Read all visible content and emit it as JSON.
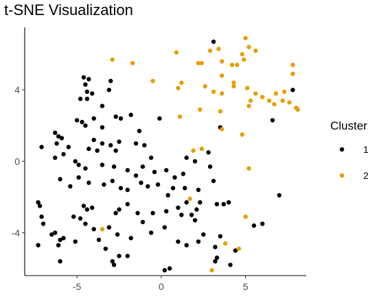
{
  "chart_data": {
    "type": "scatter",
    "title": "t-SNE Visualization",
    "xlabel": "",
    "ylabel": "",
    "xlim": [
      -8.1,
      8.6
    ],
    "ylim": [
      -6.4,
      7.5
    ],
    "x_ticks": [
      {
        "value": -5,
        "label": "-5"
      },
      {
        "value": 0,
        "label": "0"
      },
      {
        "value": 5,
        "label": "5"
      }
    ],
    "y_ticks": [
      {
        "value": -4,
        "label": "-4"
      },
      {
        "value": 0,
        "label": "0"
      },
      {
        "value": 4,
        "label": "4"
      }
    ],
    "grid": false,
    "legend": {
      "title": "Cluster",
      "position": "right",
      "entries": [
        {
          "label": "1",
          "color": "#000000"
        },
        {
          "label": "2",
          "color": "#E69F00"
        }
      ]
    },
    "series": [
      {
        "name": "1",
        "color": "#000000",
        "points": [
          [
            -4.6,
            4.7
          ],
          [
            -4.3,
            4.6
          ],
          [
            -4.5,
            4.3
          ],
          [
            -4.4,
            3.9
          ],
          [
            -4.1,
            3.8
          ],
          [
            -3.0,
            4.5
          ],
          [
            -3.1,
            4.0
          ],
          [
            -4.4,
            3.5
          ],
          [
            -4.8,
            3.5
          ],
          [
            -5.0,
            2.3
          ],
          [
            -4.7,
            2.2
          ],
          [
            -4.5,
            2.0
          ],
          [
            -4.0,
            2.4
          ],
          [
            -3.5,
            1.9
          ],
          [
            -2.7,
            2.5
          ],
          [
            -2.4,
            2.4
          ],
          [
            -1.3,
            1.7
          ],
          [
            -1.5,
            1.0
          ],
          [
            -1.0,
            0.9
          ],
          [
            -0.1,
            2.4
          ],
          [
            -6.3,
            1.6
          ],
          [
            -6.1,
            1.4
          ],
          [
            -6.2,
            1.0
          ],
          [
            -5.9,
            1.3
          ],
          [
            -5.5,
            0.8
          ],
          [
            -5.8,
            0.4
          ],
          [
            -6.3,
            0.2
          ],
          [
            -7.1,
            0.8
          ],
          [
            -4.0,
            1.2
          ],
          [
            -3.5,
            1.0
          ],
          [
            -3.0,
            0.9
          ],
          [
            -2.7,
            0.6
          ],
          [
            -3.8,
            0.6
          ],
          [
            -4.3,
            0.7
          ],
          [
            -5.1,
            0.0
          ],
          [
            -4.9,
            -0.2
          ],
          [
            -4.5,
            -0.4
          ],
          [
            -3.5,
            -0.2
          ],
          [
            -2.8,
            -0.3
          ],
          [
            -2.0,
            -0.5
          ],
          [
            -1.5,
            -0.8
          ],
          [
            -1.1,
            -0.3
          ],
          [
            -0.6,
            0.2
          ],
          [
            -0.4,
            -0.6
          ],
          [
            0.3,
            -0.5
          ],
          [
            0.8,
            -0.9
          ],
          [
            1.3,
            -0.7
          ],
          [
            1.5,
            0.2
          ],
          [
            2.0,
            0.0
          ],
          [
            2.8,
            0.5
          ],
          [
            2.9,
            -0.3
          ],
          [
            -6.0,
            -1.0
          ],
          [
            -5.4,
            -1.4
          ],
          [
            -4.9,
            -0.9
          ],
          [
            -4.3,
            -1.2
          ],
          [
            -3.4,
            -1.3
          ],
          [
            -2.9,
            -1.1
          ],
          [
            -2.4,
            -1.5
          ],
          [
            -2.0,
            -1.6
          ],
          [
            -1.2,
            -1.2
          ],
          [
            -0.8,
            -1.4
          ],
          [
            -0.2,
            -1.3
          ],
          [
            0.7,
            -1.5
          ],
          [
            1.4,
            -1.5
          ],
          [
            2.2,
            -1.6
          ],
          [
            3.1,
            -1.1
          ],
          [
            -7.3,
            -2.3
          ],
          [
            -7.2,
            -2.5
          ],
          [
            -4.6,
            -2.5
          ],
          [
            -4.4,
            -2.7
          ],
          [
            -4.1,
            -2.6
          ],
          [
            -4.8,
            -3.2
          ],
          [
            -5.2,
            -3.1
          ],
          [
            -4.5,
            -3.5
          ],
          [
            -4.0,
            -3.8
          ],
          [
            -3.1,
            -3.7
          ],
          [
            -2.7,
            -2.9
          ],
          [
            -2.5,
            -2.7
          ],
          [
            -2.0,
            -2.4
          ],
          [
            -1.4,
            -2.9
          ],
          [
            -0.5,
            -2.9
          ],
          [
            0.3,
            -2.8
          ],
          [
            1.0,
            -2.6
          ],
          [
            1.5,
            -2.3
          ],
          [
            2.1,
            -2.7
          ],
          [
            2.3,
            -2.3
          ],
          [
            3.3,
            -2.4
          ],
          [
            3.7,
            -2.4
          ],
          [
            4.0,
            -2.3
          ],
          [
            1.2,
            -3.0
          ],
          [
            1.8,
            -3.0
          ],
          [
            2.0,
            -3.3
          ],
          [
            -7.1,
            -3.1
          ],
          [
            -7.0,
            -3.5
          ],
          [
            -6.5,
            -4.1
          ],
          [
            -6.3,
            -4.0
          ],
          [
            -6.0,
            -4.4
          ],
          [
            -5.8,
            -4.3
          ],
          [
            -5.1,
            -4.5
          ],
          [
            -3.7,
            -4.4
          ],
          [
            -2.6,
            -4.1
          ],
          [
            -1.8,
            -4.3
          ],
          [
            -0.6,
            -4.0
          ],
          [
            0.2,
            -3.7
          ],
          [
            1.0,
            -4.5
          ],
          [
            1.5,
            -4.7
          ],
          [
            2.2,
            -4.5
          ],
          [
            2.5,
            -4.1
          ],
          [
            3.2,
            -4.8
          ],
          [
            3.5,
            -4.2
          ],
          [
            3.3,
            -5.4
          ],
          [
            3.2,
            -5.6
          ],
          [
            4.1,
            -5.8
          ],
          [
            4.4,
            -5.0
          ],
          [
            5.5,
            -3.6
          ],
          [
            6.0,
            -3.5
          ],
          [
            7.0,
            -1.9
          ],
          [
            -7.3,
            -4.7
          ],
          [
            -6.1,
            -4.7
          ],
          [
            -6.0,
            -5.6
          ],
          [
            -3.3,
            -4.9
          ],
          [
            -2.9,
            -5.6
          ],
          [
            -2.8,
            -5.8
          ],
          [
            -2.5,
            -5.3
          ],
          [
            -2.0,
            -5.3
          ],
          [
            0.2,
            -6.1
          ],
          [
            0.5,
            -6.0
          ],
          [
            -3.5,
            3.1
          ],
          [
            -2.5,
            1.1
          ],
          [
            -1.8,
            2.6
          ],
          [
            0.4,
            -1.9
          ],
          [
            -1.1,
            -3.4
          ],
          [
            3.5,
            1.9
          ],
          [
            6.6,
            2.3
          ],
          [
            7.8,
            4.0
          ],
          [
            3.1,
            6.7
          ]
        ]
      },
      {
        "name": "2",
        "color": "#E69F00",
        "points": [
          [
            -2.9,
            5.7
          ],
          [
            -1.7,
            5.5
          ],
          [
            0.9,
            6.1
          ],
          [
            2.2,
            5.5
          ],
          [
            2.4,
            5.5
          ],
          [
            2.9,
            6.2
          ],
          [
            3.4,
            6.3
          ],
          [
            3.6,
            5.6
          ],
          [
            4.2,
            5.4
          ],
          [
            4.8,
            6.0
          ],
          [
            5.0,
            6.9
          ],
          [
            5.2,
            6.4
          ],
          [
            5.6,
            6.2
          ],
          [
            4.9,
            5.7
          ],
          [
            4.5,
            5.4
          ],
          [
            -0.5,
            4.5
          ],
          [
            1.0,
            4.1
          ],
          [
            1.2,
            4.4
          ],
          [
            2.6,
            4.2
          ],
          [
            3.1,
            3.9
          ],
          [
            3.6,
            3.8
          ],
          [
            3.6,
            4.8
          ],
          [
            4.3,
            4.4
          ],
          [
            4.3,
            4.2
          ],
          [
            5.1,
            4.1
          ],
          [
            5.6,
            3.8
          ],
          [
            5.3,
            3.4
          ],
          [
            5.2,
            3.1
          ],
          [
            6.0,
            3.6
          ],
          [
            6.4,
            3.4
          ],
          [
            6.8,
            3.8
          ],
          [
            7.3,
            3.9
          ],
          [
            6.7,
            3.2
          ],
          [
            7.2,
            3.4
          ],
          [
            7.6,
            3.3
          ],
          [
            7.8,
            4.9
          ],
          [
            7.8,
            5.4
          ],
          [
            8.1,
            2.9
          ],
          [
            8.0,
            3.0
          ],
          [
            1.1,
            2.5
          ],
          [
            2.3,
            2.9
          ],
          [
            3.5,
            2.8
          ],
          [
            3.6,
            1.8
          ],
          [
            4.8,
            1.5
          ],
          [
            2.4,
            0.7
          ],
          [
            1.9,
            0.6
          ],
          [
            5.2,
            -0.4
          ],
          [
            1.7,
            -2.1
          ],
          [
            5.0,
            -3.1
          ],
          [
            -3.5,
            -3.8
          ],
          [
            3.8,
            -4.6
          ],
          [
            4.6,
            -4.9
          ],
          [
            3.0,
            -6.1
          ]
        ]
      }
    ]
  }
}
